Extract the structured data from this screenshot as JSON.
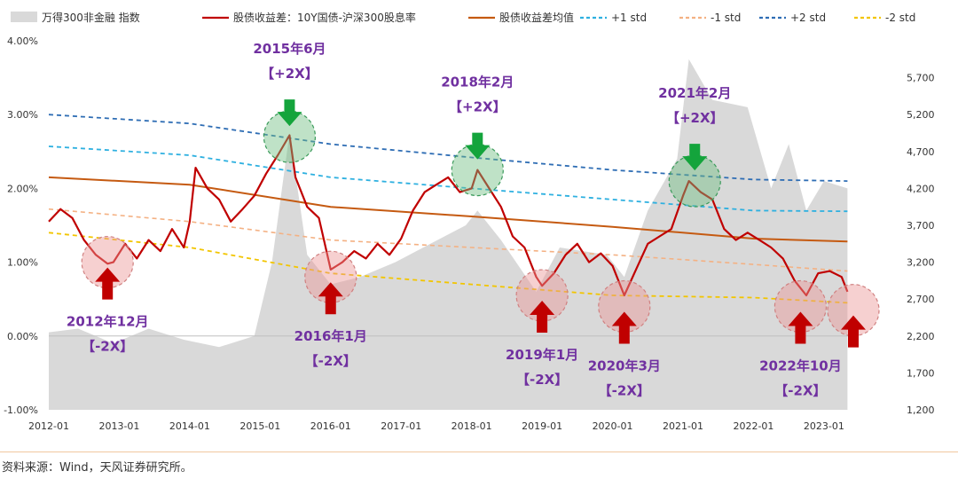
{
  "source_text": "资料来源：Wind，天风证券研究所。",
  "chart_data": {
    "type": "line",
    "legend_placement": "top",
    "legend": [
      {
        "key": "index",
        "label": "万得300非金融 指数",
        "kind": "area",
        "color": "#d9d9d9"
      },
      {
        "key": "spread",
        "label": "股债收益差：10Y国债-沪深300股息率",
        "kind": "line",
        "color": "#c00000"
      },
      {
        "key": "mean",
        "label": "股债收益差均值",
        "kind": "line",
        "color": "#c55a11"
      },
      {
        "key": "p1",
        "label": "+1 std",
        "kind": "dash",
        "color": "#2eb0e0"
      },
      {
        "key": "m1",
        "label": "-1 std",
        "kind": "dash",
        "color": "#f4b183"
      },
      {
        "key": "p2",
        "label": "+2 std",
        "kind": "dash",
        "color": "#2e6db4"
      },
      {
        "key": "m2",
        "label": "-2 std",
        "kind": "dash",
        "color": "#f2c500"
      }
    ],
    "x_range": [
      "2012-01",
      "2023-06"
    ],
    "x_ticks": [
      "2012-01",
      "2013-01",
      "2014-01",
      "2015-01",
      "2016-01",
      "2017-01",
      "2018-01",
      "2019-01",
      "2020-01",
      "2021-01",
      "2022-01",
      "2023-01"
    ],
    "y_left": {
      "min": -1.0,
      "max": 4.0,
      "ticks": [
        "-1.00%",
        "0.00%",
        "1.00%",
        "2.00%",
        "3.00%",
        "4.00%"
      ]
    },
    "y_right": {
      "min": 1200,
      "max": 6200,
      "ticks": [
        "1,200",
        "1,700",
        "2,200",
        "2,700",
        "3,200",
        "3,700",
        "4,200",
        "4,700",
        "5,200",
        "5,700"
      ]
    },
    "spread_series": [
      [
        "2012-01",
        1.55
      ],
      [
        "2012-03",
        1.72
      ],
      [
        "2012-05",
        1.6
      ],
      [
        "2012-07",
        1.3
      ],
      [
        "2012-09",
        1.1
      ],
      [
        "2012-11",
        0.98
      ],
      [
        "2012-12",
        1.0
      ],
      [
        "2013-02",
        1.25
      ],
      [
        "2013-04",
        1.05
      ],
      [
        "2013-06",
        1.3
      ],
      [
        "2013-08",
        1.15
      ],
      [
        "2013-10",
        1.45
      ],
      [
        "2013-12",
        1.2
      ],
      [
        "2014-01",
        1.55
      ],
      [
        "2014-02",
        2.28
      ],
      [
        "2014-04",
        2.0
      ],
      [
        "2014-06",
        1.85
      ],
      [
        "2014-08",
        1.55
      ],
      [
        "2014-10",
        1.72
      ],
      [
        "2014-12",
        1.9
      ],
      [
        "2015-02",
        2.2
      ],
      [
        "2015-04",
        2.45
      ],
      [
        "2015-06",
        2.72
      ],
      [
        "2015-07",
        2.15
      ],
      [
        "2015-09",
        1.75
      ],
      [
        "2015-11",
        1.6
      ],
      [
        "2016-01",
        0.9
      ],
      [
        "2016-03",
        1.0
      ],
      [
        "2016-05",
        1.15
      ],
      [
        "2016-07",
        1.05
      ],
      [
        "2016-09",
        1.25
      ],
      [
        "2016-11",
        1.1
      ],
      [
        "2017-01",
        1.32
      ],
      [
        "2017-03",
        1.7
      ],
      [
        "2017-05",
        1.95
      ],
      [
        "2017-07",
        2.05
      ],
      [
        "2017-09",
        2.15
      ],
      [
        "2017-11",
        1.95
      ],
      [
        "2018-01",
        2.0
      ],
      [
        "2018-02",
        2.25
      ],
      [
        "2018-04",
        2.0
      ],
      [
        "2018-06",
        1.75
      ],
      [
        "2018-08",
        1.35
      ],
      [
        "2018-10",
        1.2
      ],
      [
        "2018-12",
        0.8
      ],
      [
        "2019-01",
        0.68
      ],
      [
        "2019-03",
        0.85
      ],
      [
        "2019-05",
        1.1
      ],
      [
        "2019-07",
        1.25
      ],
      [
        "2019-09",
        1.0
      ],
      [
        "2019-11",
        1.12
      ],
      [
        "2020-01",
        0.95
      ],
      [
        "2020-03",
        0.55
      ],
      [
        "2020-05",
        0.9
      ],
      [
        "2020-07",
        1.25
      ],
      [
        "2020-09",
        1.35
      ],
      [
        "2020-11",
        1.45
      ],
      [
        "2021-01",
        1.9
      ],
      [
        "2021-02",
        2.1
      ],
      [
        "2021-04",
        1.95
      ],
      [
        "2021-06",
        1.85
      ],
      [
        "2021-08",
        1.45
      ],
      [
        "2021-10",
        1.3
      ],
      [
        "2021-12",
        1.4
      ],
      [
        "2022-02",
        1.3
      ],
      [
        "2022-04",
        1.2
      ],
      [
        "2022-06",
        1.05
      ],
      [
        "2022-08",
        0.75
      ],
      [
        "2022-10",
        0.55
      ],
      [
        "2022-12",
        0.85
      ],
      [
        "2023-02",
        0.88
      ],
      [
        "2023-04",
        0.8
      ],
      [
        "2023-05",
        0.6
      ]
    ],
    "mean_series": [
      [
        "2012-01",
        2.15
      ],
      [
        "2014-01",
        2.05
      ],
      [
        "2016-01",
        1.75
      ],
      [
        "2018-01",
        1.62
      ],
      [
        "2020-01",
        1.48
      ],
      [
        "2022-01",
        1.32
      ],
      [
        "2023-05",
        1.28
      ]
    ],
    "p1_series": [
      [
        "2012-01",
        2.57
      ],
      [
        "2014-01",
        2.45
      ],
      [
        "2016-01",
        2.15
      ],
      [
        "2018-01",
        2.0
      ],
      [
        "2020-01",
        1.85
      ],
      [
        "2022-01",
        1.7
      ],
      [
        "2023-05",
        1.69
      ]
    ],
    "m1_series": [
      [
        "2012-01",
        1.72
      ],
      [
        "2014-01",
        1.55
      ],
      [
        "2016-01",
        1.3
      ],
      [
        "2018-01",
        1.2
      ],
      [
        "2020-01",
        1.1
      ],
      [
        "2022-01",
        0.97
      ],
      [
        "2023-05",
        0.88
      ]
    ],
    "p2_series": [
      [
        "2012-01",
        3.0
      ],
      [
        "2014-01",
        2.88
      ],
      [
        "2016-01",
        2.6
      ],
      [
        "2018-01",
        2.42
      ],
      [
        "2020-01",
        2.25
      ],
      [
        "2022-01",
        2.12
      ],
      [
        "2023-05",
        2.1
      ]
    ],
    "m2_series": [
      [
        "2012-01",
        1.4
      ],
      [
        "2014-01",
        1.2
      ],
      [
        "2016-01",
        0.85
      ],
      [
        "2018-01",
        0.7
      ],
      [
        "2020-01",
        0.55
      ],
      [
        "2022-01",
        0.52
      ],
      [
        "2023-05",
        0.45
      ]
    ],
    "index_series": [
      [
        "2012-01",
        2250
      ],
      [
        "2012-06",
        2300
      ],
      [
        "2012-12",
        2100
      ],
      [
        "2013-06",
        2300
      ],
      [
        "2013-12",
        2150
      ],
      [
        "2014-06",
        2050
      ],
      [
        "2014-12",
        2200
      ],
      [
        "2015-03",
        3200
      ],
      [
        "2015-06",
        4950
      ],
      [
        "2015-09",
        3300
      ],
      [
        "2016-01",
        2900
      ],
      [
        "2016-06",
        3000
      ],
      [
        "2016-12",
        3200
      ],
      [
        "2017-06",
        3450
      ],
      [
        "2017-12",
        3700
      ],
      [
        "2018-02",
        3900
      ],
      [
        "2018-06",
        3500
      ],
      [
        "2018-12",
        2800
      ],
      [
        "2019-04",
        3400
      ],
      [
        "2019-12",
        3300
      ],
      [
        "2020-03",
        3000
      ],
      [
        "2020-07",
        3900
      ],
      [
        "2020-12",
        4600
      ],
      [
        "2021-02",
        5950
      ],
      [
        "2021-06",
        5400
      ],
      [
        "2021-12",
        5300
      ],
      [
        "2022-04",
        4200
      ],
      [
        "2022-07",
        4800
      ],
      [
        "2022-10",
        3900
      ],
      [
        "2023-01",
        4300
      ],
      [
        "2023-05",
        4200
      ]
    ],
    "annotations": [
      {
        "date_label": "2015年6月",
        "tag": "【+2X】",
        "date": "2015-06",
        "value": 2.7,
        "kind": "top"
      },
      {
        "date_label": "2018年2月",
        "tag": "【+2X】",
        "date": "2018-02",
        "value": 2.25,
        "kind": "top"
      },
      {
        "date_label": "2021年2月",
        "tag": "【+2X】",
        "date": "2021-03",
        "value": 2.1,
        "kind": "top"
      },
      {
        "date_label": "2012年12月",
        "tag": "【-2X】",
        "date": "2012-11",
        "value": 1.0,
        "kind": "bottom"
      },
      {
        "date_label": "2016年1月",
        "tag": "【-2X】",
        "date": "2016-01",
        "value": 0.8,
        "kind": "bottom"
      },
      {
        "date_label": "2019年1月",
        "tag": "【-2X】",
        "date": "2019-01",
        "value": 0.55,
        "kind": "bottom"
      },
      {
        "date_label": "2020年3月",
        "tag": "【-2X】",
        "date": "2020-03",
        "value": 0.4,
        "kind": "bottom"
      },
      {
        "date_label": "2022年10月",
        "tag": "【-2X】",
        "date": "2022-09",
        "value": 0.4,
        "kind": "bottom"
      },
      {
        "date_label": "",
        "tag": "",
        "date": "2023-06",
        "value": 0.35,
        "kind": "bottom"
      }
    ]
  }
}
